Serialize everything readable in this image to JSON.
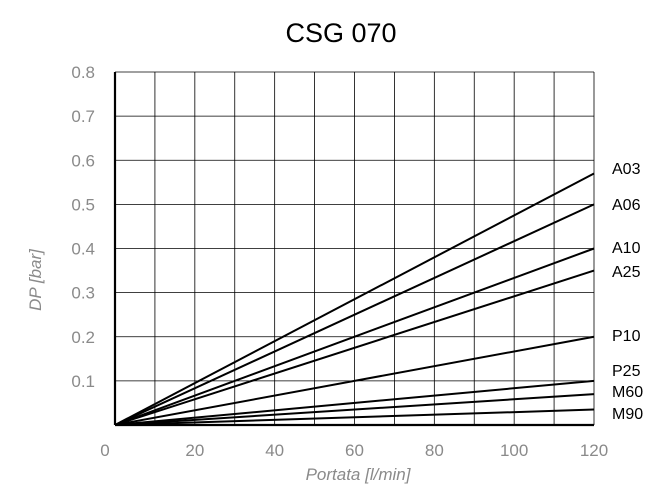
{
  "chart_data": {
    "type": "line",
    "title": "CSG 070",
    "xlabel": "Portata [l/min]",
    "ylabel": "DP [bar]",
    "xlim": [
      0,
      120
    ],
    "ylim": [
      0,
      0.8
    ],
    "x_ticks": [
      "0",
      "20",
      "40",
      "60",
      "80",
      "100",
      "120"
    ],
    "y_ticks": [
      "0.1",
      "0.2",
      "0.3",
      "0.4",
      "0.5",
      "0.6",
      "0.7",
      "0.8"
    ],
    "grid": true,
    "series": [
      {
        "name": "A03",
        "x": [
          0,
          120
        ],
        "y": [
          0,
          0.57
        ]
      },
      {
        "name": "A06",
        "x": [
          0,
          120
        ],
        "y": [
          0,
          0.5
        ]
      },
      {
        "name": "A10",
        "x": [
          0,
          120
        ],
        "y": [
          0,
          0.4
        ]
      },
      {
        "name": "A25",
        "x": [
          0,
          120
        ],
        "y": [
          0,
          0.35
        ]
      },
      {
        "name": "P10",
        "x": [
          0,
          120
        ],
        "y": [
          0,
          0.2
        ]
      },
      {
        "name": "P25",
        "x": [
          0,
          120
        ],
        "y": [
          0,
          0.1
        ]
      },
      {
        "name": "M60",
        "x": [
          0,
          120
        ],
        "y": [
          0,
          0.07
        ]
      },
      {
        "name": "M90",
        "x": [
          0,
          120
        ],
        "y": [
          0,
          0.035
        ]
      }
    ]
  }
}
